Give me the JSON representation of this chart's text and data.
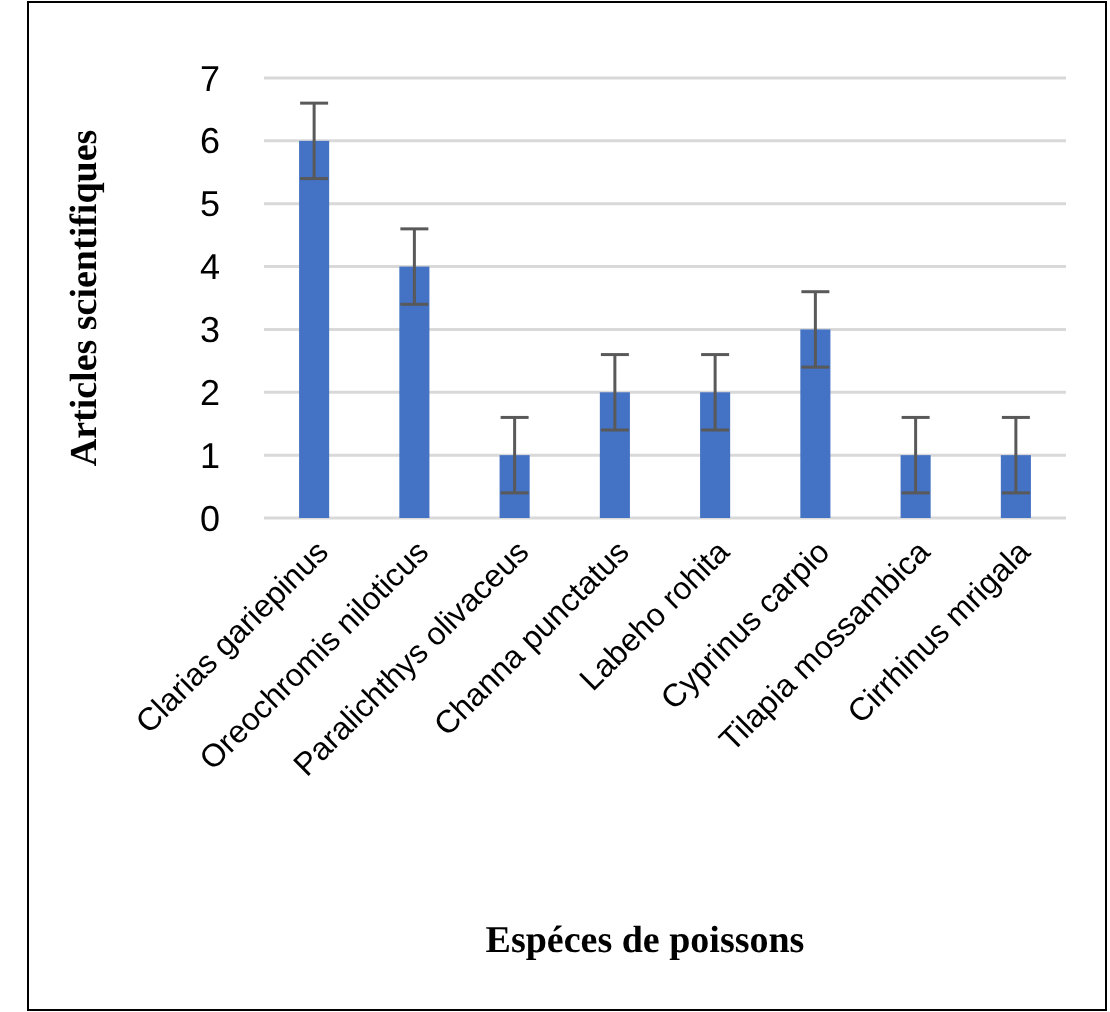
{
  "chart_data": {
    "type": "bar",
    "xlabel": "Espéces de poissons",
    "ylabel": "Articles scientifiques",
    "categories": [
      "Clarias gariepinus",
      "Oreochromis niloticus",
      "Paralichthys olivaceus",
      "Channa punctatus",
      "Labeho rohita",
      "Cyprinus carpio",
      "Tilapia mossambica",
      "Cirrhinus mrigala"
    ],
    "values": [
      6,
      4,
      1,
      2,
      2,
      3,
      1,
      1
    ],
    "errors": [
      0.6,
      0.6,
      0.6,
      0.6,
      0.6,
      0.6,
      0.6,
      0.6
    ],
    "color": "#4472c4",
    "ylim": [
      0,
      7
    ],
    "yticks": [
      0,
      1,
      2,
      3,
      4,
      5,
      6,
      7
    ],
    "grid": "y"
  }
}
